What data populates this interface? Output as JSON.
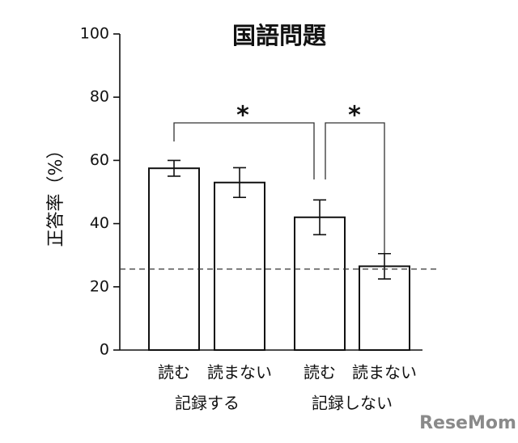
{
  "chart_data": {
    "type": "bar",
    "title": "国語問題",
    "y_label": "正答率（%）",
    "categories": [
      "読む",
      "読まない",
      "読む",
      "読まない"
    ],
    "groups": [
      "記録する",
      "記録しない"
    ],
    "values": [
      57.5,
      53,
      42,
      26.5
    ],
    "errors": [
      2.5,
      4.7,
      5.5,
      4
    ],
    "color": "#ffffff",
    "edge_color": "#111111",
    "ylim": [
      0,
      100
    ],
    "yticks": [
      0,
      20,
      40,
      60,
      80,
      100
    ],
    "reference_line": 25.6,
    "significance": [
      "*",
      "*"
    ],
    "watermark": "ReseMom"
  }
}
